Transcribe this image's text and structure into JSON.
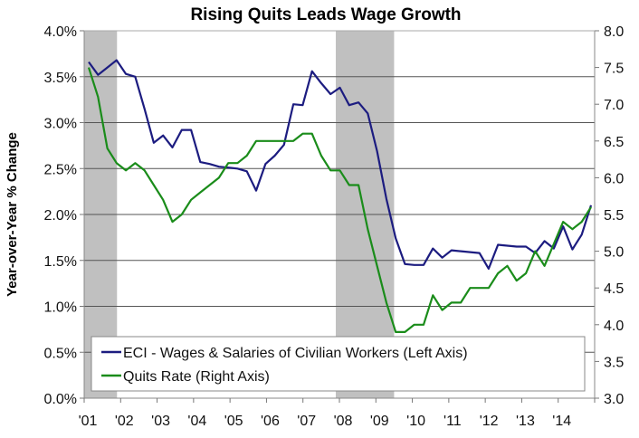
{
  "chart_data": {
    "type": "line",
    "title": "Rising Quits Leads Wage Growth",
    "ylabel": "Year-over-Year % Change",
    "y2label": "",
    "xlabel": "",
    "ylim": [
      0,
      4.0
    ],
    "y2lim": [
      3.0,
      8.0
    ],
    "yticks": [
      "0.0%",
      "0.5%",
      "1.0%",
      "1.5%",
      "2.0%",
      "2.5%",
      "3.0%",
      "3.5%",
      "4.0%"
    ],
    "y2ticks": [
      "3.0",
      "3.5",
      "4.0",
      "4.5",
      "5.0",
      "5.5",
      "6.0",
      "6.5",
      "7.0",
      "7.5",
      "8.0"
    ],
    "xticks": [
      "'01",
      "'02",
      "'03",
      "'04",
      "'05",
      "'06",
      "'07",
      "'08",
      "'09",
      "'10",
      "'11",
      "'12",
      "'13",
      "'14"
    ],
    "x_start_year": 2001,
    "frequency": "quarterly",
    "grid": true,
    "legend_position": "bottom-left",
    "recessions": [
      [
        2001.0,
        2001.9
      ],
      [
        2007.9,
        2009.5
      ]
    ],
    "series": [
      {
        "name": "ECI - Wages & Salaries of Civilian Workers (Left Axis)",
        "axis": "left",
        "color": "#1c1c80",
        "values": [
          3.66,
          3.52,
          3.6,
          3.68,
          3.53,
          3.5,
          3.15,
          2.78,
          2.86,
          2.73,
          2.92,
          2.92,
          2.57,
          2.55,
          2.52,
          2.51,
          2.5,
          2.47,
          2.26,
          2.55,
          2.64,
          2.76,
          3.2,
          3.19,
          3.56,
          3.43,
          3.31,
          3.38,
          3.19,
          3.22,
          3.1,
          2.69,
          2.17,
          1.74,
          1.46,
          1.45,
          1.45,
          1.63,
          1.53,
          1.61,
          1.6,
          1.59,
          1.58,
          1.41,
          1.67,
          1.66,
          1.65,
          1.65,
          1.58,
          1.71,
          1.63,
          1.87,
          1.62,
          1.78,
          2.1
        ]
      },
      {
        "name": "Quits Rate (Right Axis)",
        "axis": "right",
        "color": "#1a8c1a",
        "values": [
          7.5,
          7.1,
          6.4,
          6.2,
          6.1,
          6.2,
          6.1,
          5.9,
          5.7,
          5.4,
          5.5,
          5.7,
          5.8,
          5.9,
          6.0,
          6.2,
          6.2,
          6.3,
          6.5,
          6.5,
          6.5,
          6.5,
          6.5,
          6.6,
          6.6,
          6.3,
          6.1,
          6.1,
          5.9,
          5.9,
          5.3,
          4.8,
          4.3,
          3.9,
          3.9,
          4.0,
          4.0,
          4.4,
          4.2,
          4.3,
          4.3,
          4.5,
          4.5,
          4.5,
          4.7,
          4.8,
          4.6,
          4.7,
          5.0,
          4.8,
          5.1,
          5.4,
          5.3,
          5.4,
          5.6
        ]
      }
    ]
  }
}
